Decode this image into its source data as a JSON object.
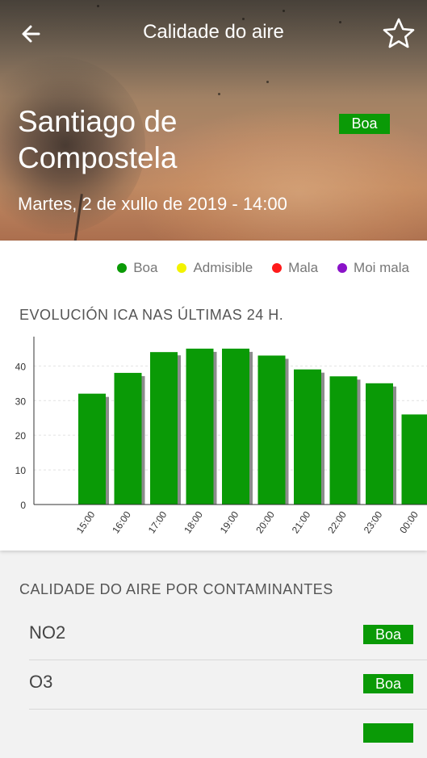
{
  "header": {
    "title": "Calidade do aire"
  },
  "location": {
    "city": "Santiago de Compostela",
    "date": "Martes, 2 de xullo de 2019 - 14:00",
    "status": "Boa"
  },
  "legend": [
    {
      "label": "Boa",
      "color": "#0a9a06"
    },
    {
      "label": "Admisible",
      "color": "#f3f300"
    },
    {
      "label": "Mala",
      "color": "#ff1a1a"
    },
    {
      "label": "Moi mala",
      "color": "#8a12c8"
    }
  ],
  "chart_title": "EVOLUCIÓN ICA NAS ÚLTIMAS 24 H.",
  "chart_data": {
    "type": "bar",
    "categories": [
      "15:00",
      "16:00",
      "17:00",
      "18:00",
      "19:00",
      "20:00",
      "21:00",
      "22:00",
      "23:00",
      "00:00"
    ],
    "values": [
      32,
      38,
      44,
      45,
      45,
      43,
      39,
      37,
      35,
      26
    ],
    "yticks": [
      0,
      10,
      20,
      30,
      40
    ],
    "ylim": [
      0,
      48
    ],
    "bar_color": "#0a9a06",
    "shadow_color": "#8c8c8c"
  },
  "pollutants_title": "CALIDADE DO AIRE POR CONTAMINANTES",
  "pollutants": [
    {
      "name": "NO2",
      "status": "Boa"
    },
    {
      "name": "O3",
      "status": "Boa"
    },
    {
      "name": "",
      "status": ""
    }
  ],
  "icons": {
    "back": "arrow-left-icon",
    "favorite": "star-outline-icon"
  }
}
